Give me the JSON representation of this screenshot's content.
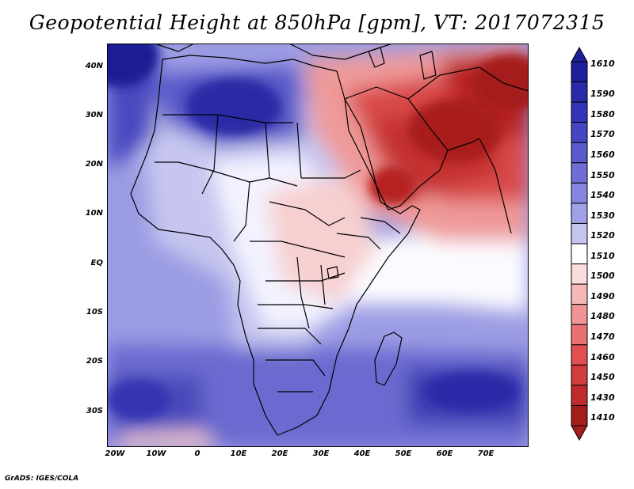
{
  "title": "Geopotential Height at 850hPa [gpm], VT: 2017072315",
  "credit": "GrADS: IGES/COLA",
  "map": {
    "lat_labels": [
      "40N",
      "30N",
      "20N",
      "10N",
      "EQ",
      "10S",
      "20S",
      "30S"
    ],
    "lon_labels": [
      "20W",
      "10W",
      "0",
      "10E",
      "20E",
      "30E",
      "40E",
      "50E",
      "60E",
      "70E"
    ]
  },
  "colorbar": {
    "levels": [
      "1610",
      "1590",
      "1580",
      "1570",
      "1560",
      "1550",
      "1540",
      "1530",
      "1520",
      "1510",
      "1500",
      "1490",
      "1480",
      "1470",
      "1460",
      "1450",
      "1430",
      "1410"
    ],
    "colors": [
      "#1f1f9b",
      "#2a2aa8",
      "#3434b6",
      "#4646c2",
      "#5a5acc",
      "#6e6ed6",
      "#8686de",
      "#a0a0e6",
      "#c4c4f0",
      "#ffffff",
      "#fbdcdc",
      "#f5b8b8",
      "#ef9595",
      "#e87272",
      "#e05050",
      "#d23c3c",
      "#c02a2a",
      "#a51c1c"
    ]
  }
}
